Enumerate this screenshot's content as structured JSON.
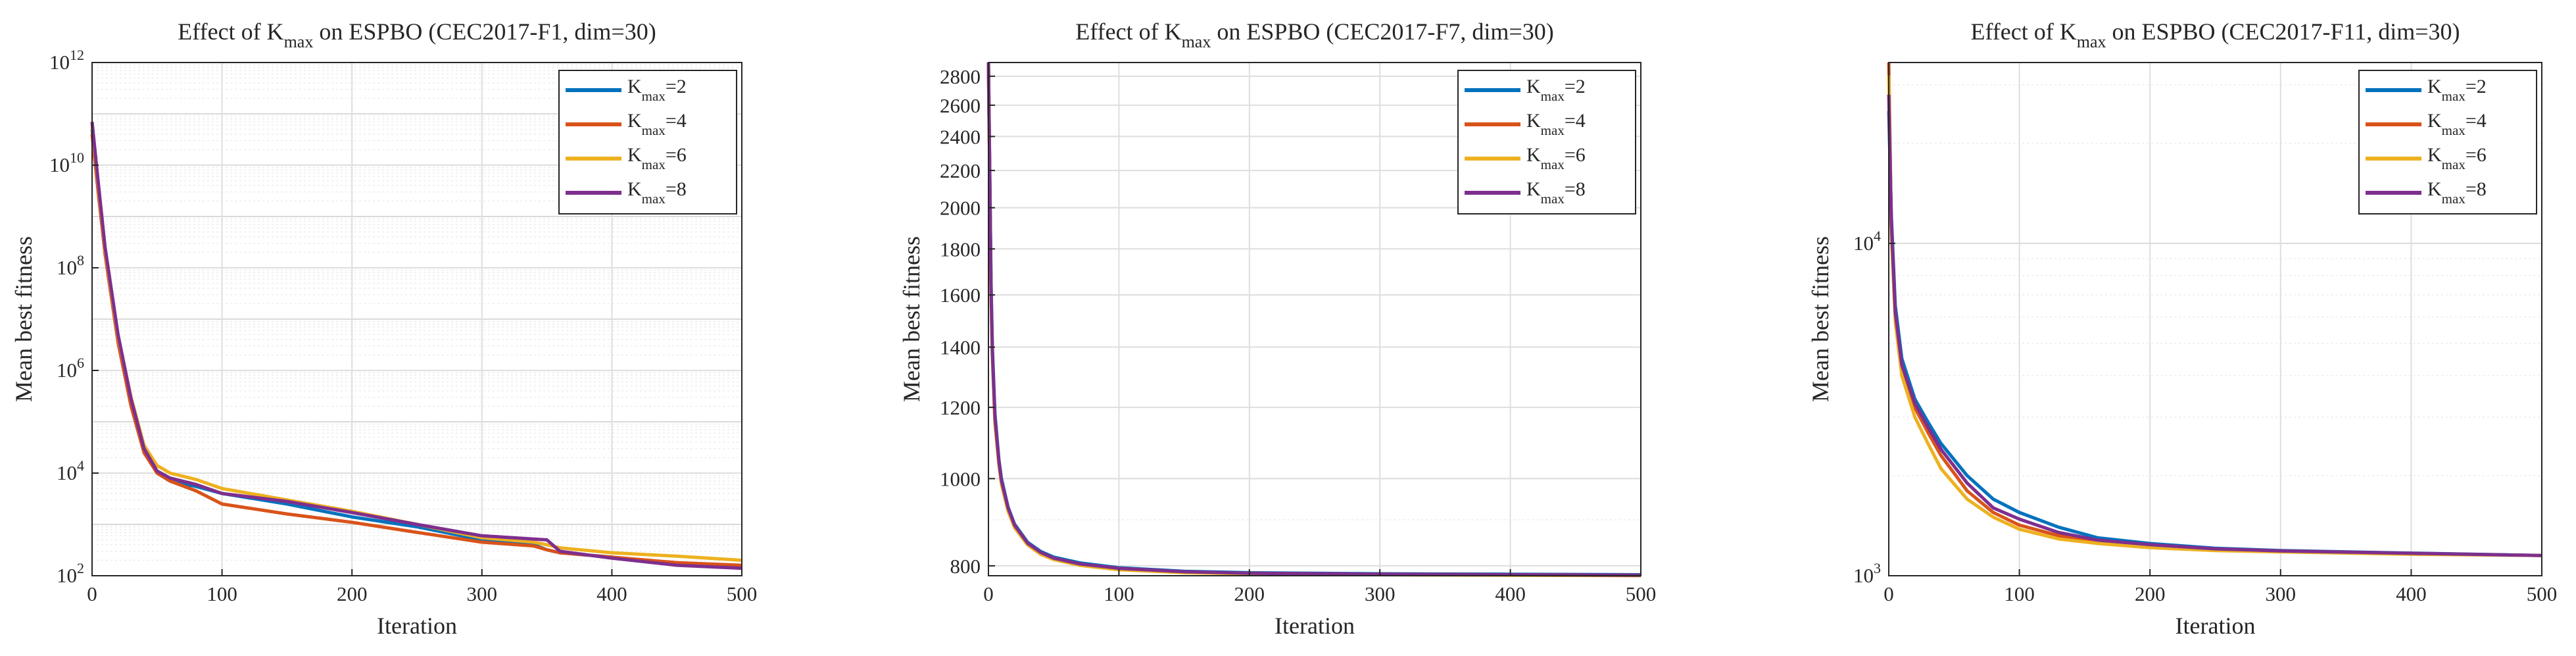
{
  "chart_data": [
    {
      "type": "line",
      "title": {
        "prefix": "Effect of K",
        "sub": "max",
        "suffix": " on ESPBO (CEC2017-F1, dim=30)"
      },
      "xlabel": "Iteration",
      "ylabel": "Mean best fitness",
      "xlim": [
        0,
        500
      ],
      "ylim": [
        100,
        1000000000000
      ],
      "yscale": "log",
      "grid": true,
      "minor_grid": true,
      "legend_position": "top-right",
      "x_ticks": [
        0,
        100,
        200,
        300,
        400,
        500
      ],
      "x_tick_labels": [
        "0",
        "100",
        "200",
        "300",
        "400",
        "500"
      ],
      "y_ticks": [
        100,
        10000,
        1000000,
        100000000,
        10000000000,
        1000000000000
      ],
      "y_tick_labels": [
        {
          "base": "10",
          "exp": "2"
        },
        {
          "base": "10",
          "exp": "4"
        },
        {
          "base": "10",
          "exp": "6"
        },
        {
          "base": "10",
          "exp": "8"
        },
        {
          "base": "10",
          "exp": "10"
        },
        {
          "base": "10",
          "exp": "12"
        }
      ],
      "series": [
        {
          "label": {
            "prefix": "K",
            "sub": "max",
            "suffix": "=2"
          },
          "color": "#0072BD",
          "x": [
            0,
            5,
            10,
            20,
            30,
            40,
            50,
            60,
            80,
            100,
            150,
            200,
            250,
            300,
            340,
            350,
            360,
            400,
            450,
            500
          ],
          "y": [
            50000000000.0,
            3000000000.0,
            200000000.0,
            4000000.0,
            250000.0,
            30000.0,
            10000.0,
            7000,
            5500,
            4000,
            2500,
            1400,
            900,
            500,
            400,
            320,
            280,
            230,
            170,
            140
          ]
        },
        {
          "label": {
            "prefix": "K",
            "sub": "max",
            "suffix": "=4"
          },
          "color": "#D95319",
          "x": [
            0,
            5,
            10,
            20,
            30,
            40,
            50,
            60,
            80,
            100,
            150,
            200,
            250,
            300,
            340,
            350,
            360,
            400,
            450,
            500
          ],
          "y": [
            40000000000.0,
            2500000000.0,
            180000000.0,
            3500000.0,
            200000.0,
            25000.0,
            10000.0,
            7000,
            4500,
            2500,
            1600,
            1100,
            700,
            450,
            380,
            320,
            280,
            230,
            180,
            160
          ]
        },
        {
          "label": {
            "prefix": "K",
            "sub": "max",
            "suffix": "=6"
          },
          "color": "#EDB120",
          "x": [
            0,
            5,
            10,
            20,
            30,
            40,
            50,
            60,
            80,
            100,
            150,
            200,
            250,
            300,
            340,
            350,
            360,
            400,
            450,
            500
          ],
          "y": [
            60000000000.0,
            3500000000.0,
            220000000.0,
            4500000.0,
            300000.0,
            35000.0,
            14000.0,
            10000.0,
            7500,
            5000,
            3000,
            1800,
            1000,
            550,
            450,
            400,
            350,
            280,
            240,
            200
          ]
        },
        {
          "label": {
            "prefix": "K",
            "sub": "max",
            "suffix": "=8"
          },
          "color": "#7E2F8E",
          "x": [
            0,
            5,
            10,
            20,
            30,
            40,
            50,
            60,
            80,
            100,
            150,
            200,
            250,
            300,
            340,
            350,
            360,
            400,
            450,
            500
          ],
          "y": [
            70000000000.0,
            4000000000.0,
            250000000.0,
            5000000.0,
            280000.0,
            30000.0,
            11000.0,
            8000,
            6000,
            4000,
            2800,
            1700,
            1000,
            600,
            520,
            500,
            300,
            220,
            160,
            140
          ]
        }
      ]
    },
    {
      "type": "line",
      "title": {
        "prefix": "Effect of K",
        "sub": "max",
        "suffix": " on ESPBO (CEC2017-F7, dim=30)"
      },
      "xlabel": "Iteration",
      "ylabel": "Mean best fitness",
      "xlim": [
        0,
        500
      ],
      "ylim": [
        780,
        2900
      ],
      "yscale": "log",
      "grid": true,
      "minor_grid": true,
      "legend_position": "top-right",
      "x_ticks": [
        0,
        100,
        200,
        300,
        400,
        500
      ],
      "x_tick_labels": [
        "0",
        "100",
        "200",
        "300",
        "400",
        "500"
      ],
      "y_ticks": [
        800,
        1000,
        1200,
        1400,
        1600,
        1800,
        2000,
        2200,
        2400,
        2600,
        2800
      ],
      "y_tick_labels": [
        "800",
        "1000",
        "1200",
        "1400",
        "1600",
        "1800",
        "2000",
        "2200",
        "2400",
        "2600",
        "2800"
      ],
      "series": [
        {
          "label": {
            "prefix": "K",
            "sub": "max",
            "suffix": "=2"
          },
          "color": "#0072BD",
          "x": [
            0,
            1,
            2,
            3,
            5,
            8,
            10,
            15,
            20,
            30,
            40,
            50,
            70,
            100,
            150,
            200,
            300,
            400,
            500
          ],
          "y": [
            2900,
            2200,
            1650,
            1400,
            1180,
            1050,
            1000,
            930,
            890,
            850,
            830,
            818,
            806,
            796,
            789,
            786,
            784,
            783,
            782
          ]
        },
        {
          "label": {
            "prefix": "K",
            "sub": "max",
            "suffix": "=4"
          },
          "color": "#D95319",
          "x": [
            0,
            1,
            2,
            3,
            5,
            8,
            10,
            15,
            20,
            30,
            40,
            50,
            70,
            100,
            150,
            200,
            300,
            400,
            500
          ],
          "y": [
            2900,
            2150,
            1600,
            1370,
            1160,
            1040,
            990,
            925,
            885,
            846,
            826,
            815,
            803,
            793,
            787,
            785,
            783,
            782,
            781
          ]
        },
        {
          "label": {
            "prefix": "K",
            "sub": "max",
            "suffix": "=6"
          },
          "color": "#EDB120",
          "x": [
            0,
            1,
            2,
            3,
            5,
            8,
            10,
            15,
            20,
            30,
            40,
            50,
            70,
            100,
            150,
            200,
            300,
            400,
            500
          ],
          "y": [
            2900,
            2120,
            1580,
            1360,
            1150,
            1035,
            985,
            920,
            882,
            844,
            824,
            813,
            801,
            792,
            786,
            784,
            782,
            781,
            780
          ]
        },
        {
          "label": {
            "prefix": "K",
            "sub": "max",
            "suffix": "=8"
          },
          "color": "#7E2F8E",
          "x": [
            0,
            1,
            2,
            3,
            5,
            8,
            10,
            15,
            20,
            30,
            40,
            50,
            70,
            100,
            150,
            200,
            300,
            400,
            500
          ],
          "y": [
            2900,
            2180,
            1620,
            1380,
            1170,
            1045,
            995,
            928,
            888,
            848,
            828,
            816,
            804,
            795,
            788,
            785,
            783,
            782,
            781
          ]
        }
      ]
    },
    {
      "type": "line",
      "title": {
        "prefix": "Effect of K",
        "sub": "max",
        "suffix": " on ESPBO (CEC2017-F11, dim=30)"
      },
      "xlabel": "Iteration",
      "ylabel": "Mean best fitness",
      "xlim": [
        0,
        500
      ],
      "ylim": [
        1000,
        35000
      ],
      "yscale": "log",
      "grid": true,
      "minor_grid": true,
      "legend_position": "top-right",
      "x_ticks": [
        0,
        100,
        200,
        300,
        400,
        500
      ],
      "x_tick_labels": [
        "0",
        "100",
        "200",
        "300",
        "400",
        "500"
      ],
      "y_ticks": [
        1000,
        10000
      ],
      "y_tick_labels": [
        {
          "base": "10",
          "exp": "3"
        },
        {
          "base": "10",
          "exp": "4"
        }
      ],
      "series": [
        {
          "label": {
            "prefix": "K",
            "sub": "max",
            "suffix": "=2"
          },
          "color": "#0072BD",
          "x": [
            0,
            2,
            5,
            10,
            20,
            30,
            40,
            60,
            80,
            100,
            130,
            160,
            200,
            250,
            300,
            400,
            500
          ],
          "y": [
            25000,
            12000,
            6500,
            4500,
            3400,
            2900,
            2500,
            2000,
            1700,
            1550,
            1400,
            1300,
            1250,
            1210,
            1190,
            1170,
            1150
          ]
        },
        {
          "label": {
            "prefix": "K",
            "sub": "max",
            "suffix": "=4"
          },
          "color": "#D95319",
          "x": [
            0,
            2,
            5,
            10,
            20,
            30,
            40,
            60,
            80,
            100,
            130,
            160,
            200,
            250,
            300,
            400,
            500
          ],
          "y": [
            35000,
            11000,
            6000,
            4200,
            3200,
            2700,
            2300,
            1800,
            1550,
            1420,
            1320,
            1270,
            1230,
            1200,
            1185,
            1165,
            1150
          ]
        },
        {
          "label": {
            "prefix": "K",
            "sub": "max",
            "suffix": "=6"
          },
          "color": "#EDB120",
          "x": [
            0,
            2,
            5,
            10,
            20,
            30,
            40,
            60,
            80,
            100,
            130,
            160,
            200,
            250,
            300,
            400,
            500
          ],
          "y": [
            32000,
            10500,
            5800,
            4000,
            3000,
            2500,
            2100,
            1700,
            1500,
            1380,
            1290,
            1250,
            1215,
            1190,
            1180,
            1160,
            1150
          ]
        },
        {
          "label": {
            "prefix": "K",
            "sub": "max",
            "suffix": "=8"
          },
          "color": "#7E2F8E",
          "x": [
            0,
            2,
            5,
            10,
            20,
            30,
            40,
            60,
            80,
            100,
            130,
            160,
            200,
            250,
            300,
            400,
            500
          ],
          "y": [
            28000,
            11500,
            6200,
            4300,
            3300,
            2800,
            2400,
            1900,
            1600,
            1480,
            1350,
            1280,
            1240,
            1205,
            1188,
            1168,
            1150
          ]
        }
      ]
    }
  ]
}
